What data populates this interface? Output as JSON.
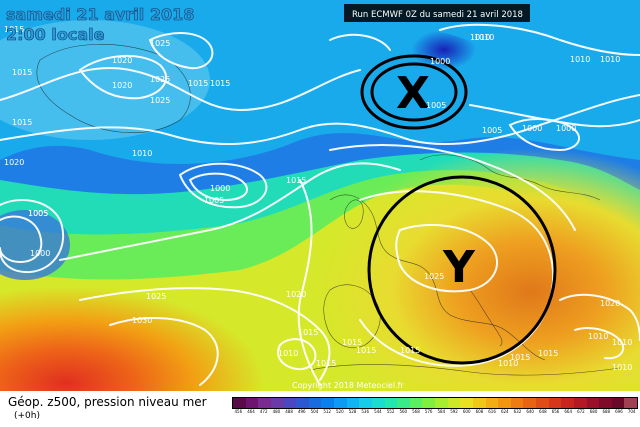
{
  "header": {
    "date": "samedi 21 avril 2018",
    "time": "2:00 locale",
    "run": "Run ECMWF 0Z du samedi 21 avril 2018"
  },
  "annotations": {
    "x_label": "X",
    "y_label": "Y"
  },
  "isobars": [
    {
      "text": "1015"
    },
    {
      "text": "1025"
    },
    {
      "text": "1020"
    },
    {
      "text": "1015"
    },
    {
      "text": "1025"
    },
    {
      "text": "1020"
    },
    {
      "text": "1015"
    },
    {
      "text": "1025"
    },
    {
      "text": "1015"
    },
    {
      "text": "1015"
    },
    {
      "text": "1010"
    },
    {
      "text": "1020"
    },
    {
      "text": "1005"
    },
    {
      "text": "1000"
    },
    {
      "text": "1005"
    },
    {
      "text": "1000"
    },
    {
      "text": "1005"
    },
    {
      "text": "1015"
    },
    {
      "text": "1010"
    },
    {
      "text": "1000"
    },
    {
      "text": "1010"
    },
    {
      "text": "1010"
    },
    {
      "text": "1005"
    },
    {
      "text": "1000"
    },
    {
      "text": "1000"
    },
    {
      "text": "1025"
    },
    {
      "text": "1030"
    },
    {
      "text": "1020"
    },
    {
      "text": "1025"
    },
    {
      "text": "1015"
    },
    {
      "text": "1010"
    },
    {
      "text": "1010"
    },
    {
      "text": "1015"
    },
    {
      "text": "1015"
    },
    {
      "text": "1015"
    },
    {
      "text": "1010"
    },
    {
      "text": "1015"
    },
    {
      "text": "1010"
    },
    {
      "text": "1015"
    },
    {
      "text": "1020"
    },
    {
      "text": "1015"
    },
    {
      "text": "1010"
    },
    {
      "text": "1005"
    },
    {
      "text": "1010"
    }
  ],
  "copyright": "Copyright 2018 Meteociel.fr",
  "legend": {
    "title": "Géop. z500, pression niveau mer",
    "subtitle": "(+0h)",
    "colors": [
      "#5a0a4a",
      "#6e1470",
      "#7a2a90",
      "#6a3aa8",
      "#4a48c0",
      "#2c58d0",
      "#1a6ae0",
      "#0a80ec",
      "#0c9af2",
      "#10b4f2",
      "#16cce8",
      "#1cdcd0",
      "#22e8b0",
      "#3aec88",
      "#5af060",
      "#80f040",
      "#a8ee30",
      "#cce828",
      "#e8e020",
      "#f2c818",
      "#f4ae14",
      "#f29612",
      "#ee7c12",
      "#e86414",
      "#e04c18",
      "#d8361c",
      "#c82420",
      "#b41824",
      "#9a1028",
      "#800a2a",
      "#6a082a",
      "#a04050"
    ],
    "labels": [
      "456",
      "464",
      "472",
      "480",
      "488",
      "496",
      "504",
      "512",
      "520",
      "528",
      "536",
      "544",
      "552",
      "560",
      "568",
      "576",
      "584",
      "592",
      "600",
      "608",
      "616",
      "624",
      "632",
      "640",
      "648",
      "656",
      "664",
      "672",
      "680",
      "688",
      "696",
      "704"
    ]
  }
}
